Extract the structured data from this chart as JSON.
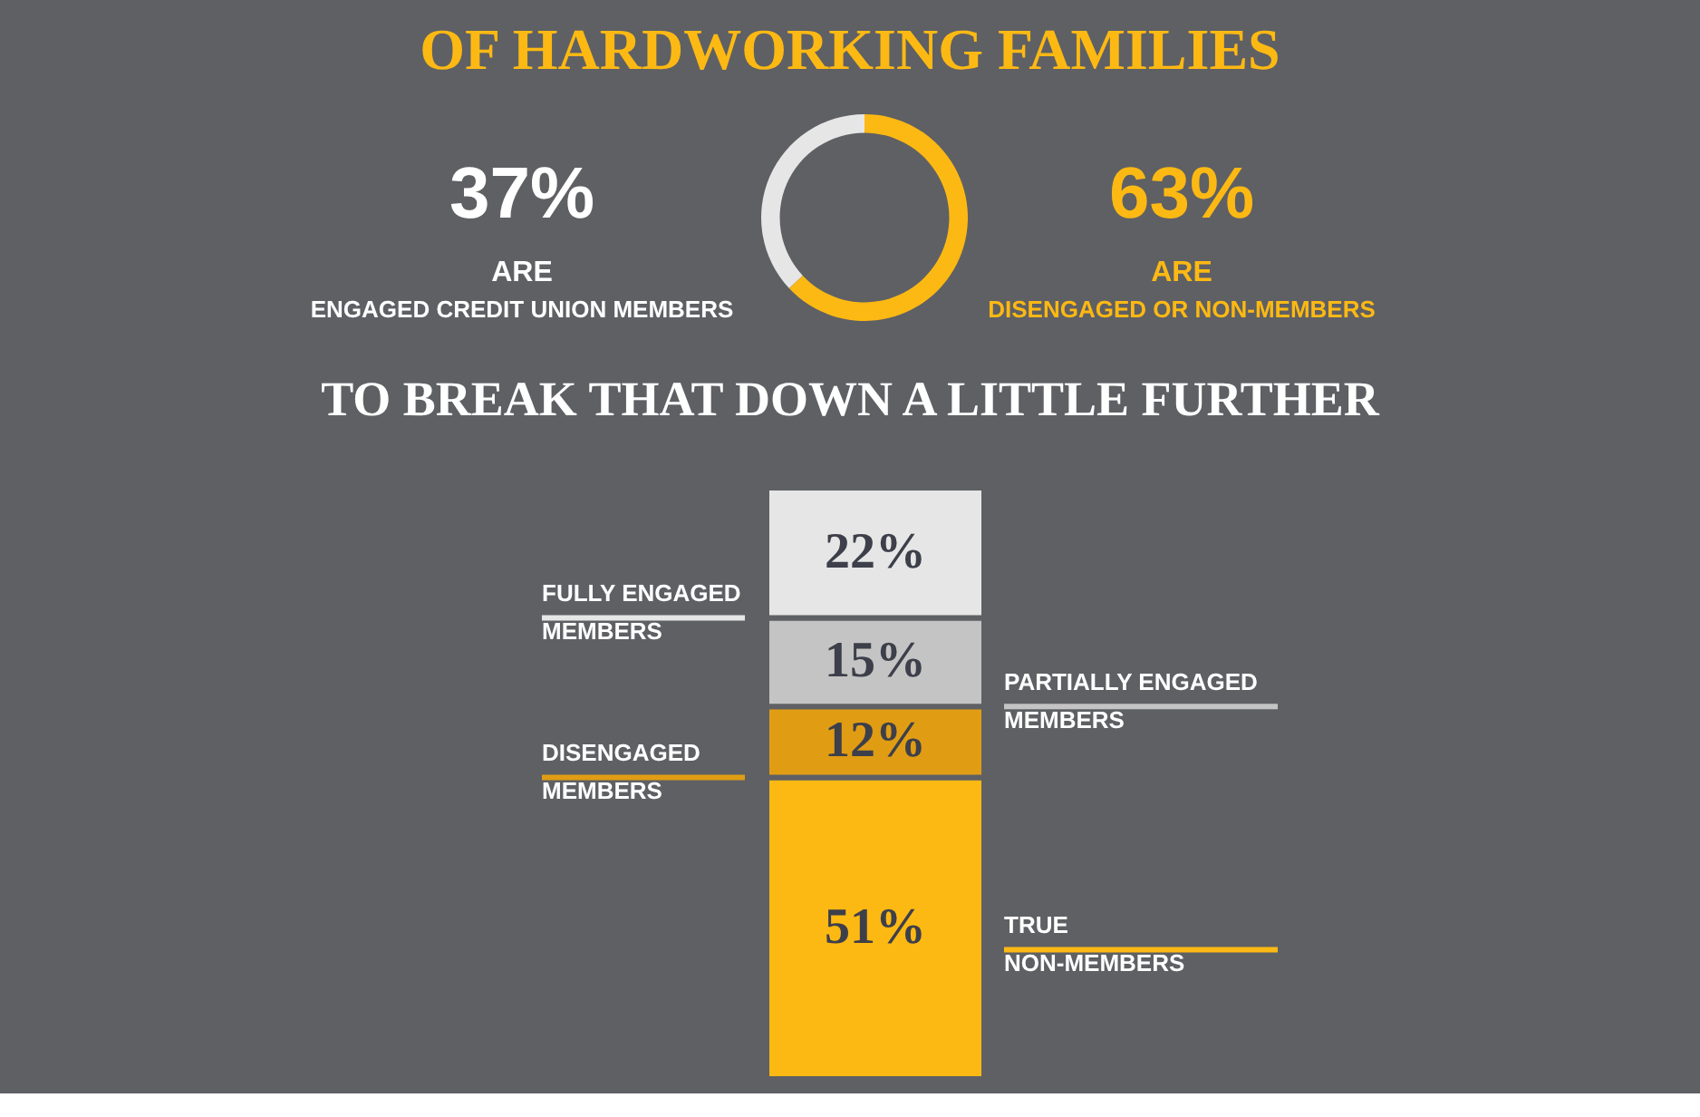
{
  "chart_data": [
    {
      "type": "donut",
      "title": "OF HARDWORKING FAMILIES",
      "categories": [
        "ARE ENGAGED CREDIT UNION MEMBERS",
        "ARE DISENGAGED OR NON-MEMBERS"
      ],
      "values": [
        37,
        63
      ],
      "value_labels": [
        "37%",
        "63%"
      ],
      "colors": [
        "#e6e6e6",
        "#fdb913"
      ]
    },
    {
      "type": "bar",
      "stacked": true,
      "title": "TO BREAK THAT DOWN A LITTLE FURTHER",
      "categories": [
        null
      ],
      "ylim": [
        0,
        100
      ],
      "series": [
        {
          "name": "TRUE NON-MEMBERS",
          "color": "#fdb913",
          "values": [
            51
          ],
          "value_labels": [
            "51%"
          ]
        },
        {
          "name": "DISENGAGED MEMBERS",
          "color": "#e09d14",
          "values": [
            12
          ],
          "value_labels": [
            "12%"
          ]
        },
        {
          "name": "PARTIALLY ENGAGED MEMBERS",
          "color": "#c4c4c4",
          "values": [
            15
          ],
          "value_labels": [
            "15%"
          ]
        },
        {
          "name": "FULLY ENGAGED MEMBERS",
          "color": "#e6e6e6",
          "values": [
            22
          ],
          "value_labels": [
            "22%"
          ]
        }
      ]
    }
  ]
}
